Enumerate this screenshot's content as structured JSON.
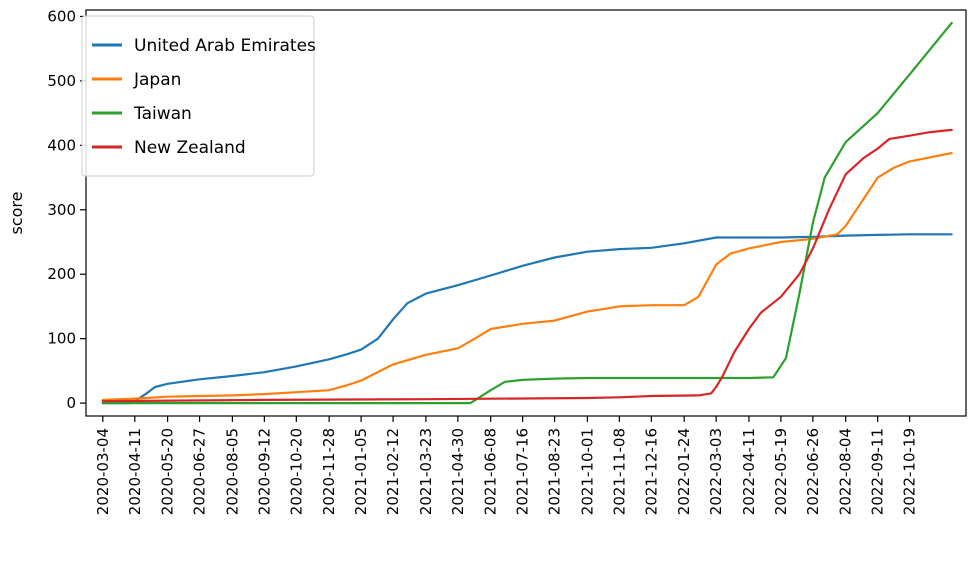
{
  "chart_data": {
    "type": "line",
    "title": "",
    "xlabel": "",
    "ylabel": "score",
    "ylim": [
      -20,
      610
    ],
    "yticks": [
      0,
      100,
      200,
      300,
      400,
      500,
      600
    ],
    "xlim": [
      "2020-02-13",
      "2022-12-25"
    ],
    "xticks": [
      "2020-03-04",
      "2020-04-11",
      "2020-05-20",
      "2020-06-27",
      "2020-08-05",
      "2020-09-12",
      "2020-10-20",
      "2020-11-28",
      "2021-01-05",
      "2021-02-12",
      "2021-03-23",
      "2021-04-30",
      "2021-06-08",
      "2021-07-16",
      "2021-08-23",
      "2021-10-01",
      "2021-11-08",
      "2021-12-16",
      "2022-01-24",
      "2022-03-03",
      "2022-04-11",
      "2022-05-19",
      "2022-06-26",
      "2022-08-04",
      "2022-09-11",
      "2022-10-19"
    ],
    "grid": false,
    "legend_position": "top-left",
    "series": [
      {
        "name": "United Arab Emirates",
        "color": "#1f77b4",
        "points": [
          [
            "2020-03-04",
            0
          ],
          [
            "2020-04-05",
            0
          ],
          [
            "2020-04-11",
            3
          ],
          [
            "2020-04-25",
            15
          ],
          [
            "2020-05-05",
            25
          ],
          [
            "2020-05-20",
            30
          ],
          [
            "2020-06-27",
            37
          ],
          [
            "2020-08-05",
            42
          ],
          [
            "2020-09-12",
            48
          ],
          [
            "2020-10-20",
            57
          ],
          [
            "2020-11-28",
            68
          ],
          [
            "2020-12-20",
            76
          ],
          [
            "2021-01-05",
            83
          ],
          [
            "2021-01-25",
            100
          ],
          [
            "2021-02-12",
            130
          ],
          [
            "2021-03-01",
            155
          ],
          [
            "2021-03-23",
            170
          ],
          [
            "2021-04-30",
            183
          ],
          [
            "2021-06-08",
            198
          ],
          [
            "2021-07-16",
            213
          ],
          [
            "2021-08-23",
            226
          ],
          [
            "2021-10-01",
            235
          ],
          [
            "2021-11-08",
            239
          ],
          [
            "2021-12-16",
            241
          ],
          [
            "2022-01-24",
            248
          ],
          [
            "2022-03-03",
            257
          ],
          [
            "2022-04-11",
            257
          ],
          [
            "2022-05-19",
            257
          ],
          [
            "2022-06-26",
            258
          ],
          [
            "2022-08-04",
            260
          ],
          [
            "2022-09-11",
            261
          ],
          [
            "2022-10-19",
            262
          ],
          [
            "2022-12-08",
            262
          ]
        ]
      },
      {
        "name": "Japan",
        "color": "#ff7f0e",
        "points": [
          [
            "2020-03-04",
            5
          ],
          [
            "2020-04-11",
            7
          ],
          [
            "2020-05-20",
            10
          ],
          [
            "2020-06-27",
            11
          ],
          [
            "2020-08-05",
            12
          ],
          [
            "2020-09-12",
            14
          ],
          [
            "2020-10-20",
            17
          ],
          [
            "2020-11-28",
            20
          ],
          [
            "2020-12-20",
            28
          ],
          [
            "2021-01-05",
            35
          ],
          [
            "2021-02-12",
            60
          ],
          [
            "2021-03-23",
            75
          ],
          [
            "2021-04-30",
            85
          ],
          [
            "2021-05-20",
            100
          ],
          [
            "2021-06-08",
            115
          ],
          [
            "2021-07-16",
            123
          ],
          [
            "2021-08-23",
            128
          ],
          [
            "2021-10-01",
            142
          ],
          [
            "2021-11-08",
            150
          ],
          [
            "2021-12-16",
            152
          ],
          [
            "2022-01-24",
            152
          ],
          [
            "2022-02-10",
            165
          ],
          [
            "2022-03-03",
            215
          ],
          [
            "2022-03-20",
            232
          ],
          [
            "2022-04-11",
            240
          ],
          [
            "2022-05-19",
            250
          ],
          [
            "2022-06-26",
            255
          ],
          [
            "2022-07-25",
            262
          ],
          [
            "2022-08-04",
            275
          ],
          [
            "2022-09-11",
            350
          ],
          [
            "2022-09-30",
            365
          ],
          [
            "2022-10-19",
            375
          ],
          [
            "2022-12-08",
            388
          ]
        ]
      },
      {
        "name": "Taiwan",
        "color": "#2ca02c",
        "points": [
          [
            "2020-03-04",
            0
          ],
          [
            "2021-05-15",
            0
          ],
          [
            "2021-06-08",
            20
          ],
          [
            "2021-06-25",
            33
          ],
          [
            "2021-07-16",
            36
          ],
          [
            "2021-08-23",
            38
          ],
          [
            "2021-10-01",
            39
          ],
          [
            "2021-11-08",
            39
          ],
          [
            "2022-01-24",
            39
          ],
          [
            "2022-03-03",
            39
          ],
          [
            "2022-04-11",
            39
          ],
          [
            "2022-05-10",
            40
          ],
          [
            "2022-05-25",
            70
          ],
          [
            "2022-06-10",
            170
          ],
          [
            "2022-06-26",
            280
          ],
          [
            "2022-07-10",
            350
          ],
          [
            "2022-08-04",
            405
          ],
          [
            "2022-09-11",
            450
          ],
          [
            "2022-10-19",
            510
          ],
          [
            "2022-12-08",
            590
          ]
        ]
      },
      {
        "name": "New Zealand",
        "color": "#d62728",
        "points": [
          [
            "2020-03-04",
            3
          ],
          [
            "2020-09-12",
            5
          ],
          [
            "2021-03-23",
            6
          ],
          [
            "2021-10-01",
            8
          ],
          [
            "2021-11-08",
            9
          ],
          [
            "2021-12-16",
            11
          ],
          [
            "2022-02-10",
            12
          ],
          [
            "2022-02-25",
            15
          ],
          [
            "2022-03-03",
            25
          ],
          [
            "2022-03-10",
            40
          ],
          [
            "2022-03-25",
            80
          ],
          [
            "2022-04-11",
            115
          ],
          [
            "2022-04-25",
            140
          ],
          [
            "2022-05-19",
            165
          ],
          [
            "2022-06-10",
            200
          ],
          [
            "2022-06-26",
            240
          ],
          [
            "2022-07-15",
            300
          ],
          [
            "2022-08-04",
            355
          ],
          [
            "2022-08-25",
            380
          ],
          [
            "2022-09-11",
            395
          ],
          [
            "2022-09-25",
            410
          ],
          [
            "2022-10-19",
            415
          ],
          [
            "2022-11-10",
            420
          ],
          [
            "2022-12-08",
            424
          ]
        ]
      }
    ]
  }
}
